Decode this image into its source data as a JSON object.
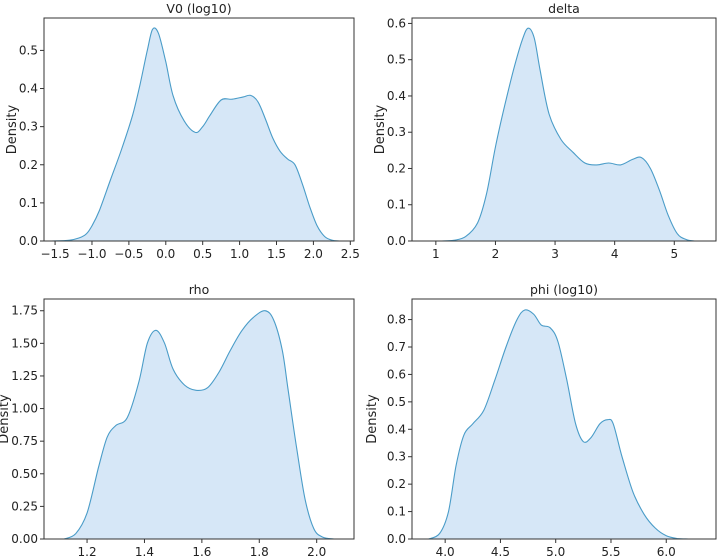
{
  "colors": {
    "fill": "#cfe3f6",
    "line": "#4a9cc8",
    "axis": "#333333"
  },
  "chart_data": [
    {
      "type": "area",
      "title": "V0 (log10)",
      "xlabel": "",
      "ylabel": "Density",
      "xlim": [
        -1.65,
        2.55
      ],
      "ylim": [
        0,
        0.585
      ],
      "xticks": [
        -1.5,
        -1.0,
        -0.5,
        0.0,
        0.5,
        1.0,
        1.5,
        2.0,
        2.5
      ],
      "xtick_labels": [
        "−1.5",
        "−1.0",
        "−0.5",
        "0.0",
        "0.5",
        "1.0",
        "1.5",
        "2.0",
        "2.5"
      ],
      "yticks": [
        0.0,
        0.1,
        0.2,
        0.3,
        0.4,
        0.5
      ],
      "ytick_labels": [
        "0.0",
        "0.1",
        "0.2",
        "0.3",
        "0.4",
        "0.5"
      ],
      "x": [
        -1.55,
        -1.3,
        -1.1,
        -1.0,
        -0.9,
        -0.75,
        -0.6,
        -0.45,
        -0.35,
        -0.25,
        -0.18,
        -0.1,
        0.0,
        0.1,
        0.25,
        0.4,
        0.5,
        0.6,
        0.75,
        0.9,
        1.05,
        1.15,
        1.25,
        1.35,
        1.45,
        1.55,
        1.65,
        1.75,
        1.85,
        1.95,
        2.05,
        2.15,
        2.25,
        2.35
      ],
      "y": [
        0.0,
        0.002,
        0.015,
        0.04,
        0.08,
        0.16,
        0.24,
        0.33,
        0.41,
        0.5,
        0.555,
        0.545,
        0.47,
        0.38,
        0.315,
        0.285,
        0.3,
        0.33,
        0.37,
        0.372,
        0.378,
        0.382,
        0.365,
        0.32,
        0.27,
        0.235,
        0.215,
        0.2,
        0.15,
        0.09,
        0.04,
        0.012,
        0.002,
        0.0
      ]
    },
    {
      "type": "area",
      "title": "delta",
      "xlabel": "",
      "ylabel": "Density",
      "xlim": [
        0.6,
        5.7
      ],
      "ylim": [
        0,
        0.615
      ],
      "xticks": [
        1,
        2,
        3,
        4,
        5
      ],
      "xtick_labels": [
        "1",
        "2",
        "3",
        "4",
        "5"
      ],
      "yticks": [
        0.0,
        0.1,
        0.2,
        0.3,
        0.4,
        0.5,
        0.6
      ],
      "ytick_labels": [
        "0.0",
        "0.1",
        "0.2",
        "0.3",
        "0.4",
        "0.5",
        "0.6"
      ],
      "x": [
        1.1,
        1.3,
        1.5,
        1.7,
        1.85,
        2.0,
        2.15,
        2.3,
        2.45,
        2.55,
        2.65,
        2.75,
        2.9,
        3.1,
        3.3,
        3.5,
        3.7,
        3.9,
        4.1,
        4.3,
        4.45,
        4.6,
        4.75,
        4.9,
        5.05,
        5.2,
        5.35
      ],
      "y": [
        0.0,
        0.002,
        0.012,
        0.05,
        0.13,
        0.26,
        0.37,
        0.47,
        0.555,
        0.587,
        0.56,
        0.47,
        0.35,
        0.28,
        0.245,
        0.215,
        0.21,
        0.215,
        0.21,
        0.225,
        0.23,
        0.2,
        0.14,
        0.07,
        0.02,
        0.004,
        0.0
      ]
    },
    {
      "type": "area",
      "title": "rho",
      "xlabel": "",
      "ylabel": "Density",
      "xlim": [
        1.05,
        2.13
      ],
      "ylim": [
        0,
        1.84
      ],
      "xticks": [
        1.2,
        1.4,
        1.6,
        1.8,
        2.0
      ],
      "xtick_labels": [
        "1.2",
        "1.4",
        "1.6",
        "1.8",
        "2.0"
      ],
      "yticks": [
        0.0,
        0.25,
        0.5,
        0.75,
        1.0,
        1.25,
        1.5,
        1.75
      ],
      "ytick_labels": [
        "0.00",
        "0.25",
        "0.50",
        "0.75",
        "1.00",
        "1.25",
        "1.50",
        "1.75"
      ],
      "x": [
        1.12,
        1.16,
        1.2,
        1.24,
        1.27,
        1.3,
        1.34,
        1.38,
        1.41,
        1.44,
        1.47,
        1.5,
        1.54,
        1.58,
        1.62,
        1.66,
        1.7,
        1.74,
        1.78,
        1.82,
        1.85,
        1.88,
        1.9,
        1.93,
        1.96,
        1.99,
        2.02,
        2.06
      ],
      "y": [
        0.0,
        0.04,
        0.2,
        0.55,
        0.78,
        0.87,
        0.93,
        1.2,
        1.5,
        1.6,
        1.5,
        1.3,
        1.18,
        1.14,
        1.16,
        1.28,
        1.45,
        1.6,
        1.7,
        1.75,
        1.68,
        1.45,
        1.15,
        0.7,
        0.3,
        0.08,
        0.015,
        0.0
      ]
    },
    {
      "type": "area",
      "title": "phi (log10)",
      "xlabel": "",
      "ylabel": "Density",
      "xlim": [
        3.7,
        6.45
      ],
      "ylim": [
        0,
        0.875
      ],
      "xticks": [
        4.0,
        4.5,
        5.0,
        5.5,
        6.0
      ],
      "xtick_labels": [
        "4.0",
        "4.5",
        "5.0",
        "5.5",
        "6.0"
      ],
      "yticks": [
        0.0,
        0.1,
        0.2,
        0.3,
        0.4,
        0.5,
        0.6,
        0.7,
        0.8
      ],
      "ytick_labels": [
        "0.0",
        "0.1",
        "0.2",
        "0.3",
        "0.4",
        "0.5",
        "0.6",
        "0.7",
        "0.8"
      ],
      "x": [
        3.85,
        3.95,
        4.03,
        4.1,
        4.17,
        4.25,
        4.35,
        4.45,
        4.55,
        4.65,
        4.72,
        4.8,
        4.87,
        4.95,
        5.02,
        5.1,
        5.18,
        5.25,
        5.32,
        5.4,
        5.47,
        5.52,
        5.6,
        5.7,
        5.8,
        5.9,
        6.0,
        6.1,
        6.2
      ],
      "y": [
        0.0,
        0.02,
        0.1,
        0.27,
        0.38,
        0.42,
        0.47,
        0.58,
        0.7,
        0.8,
        0.835,
        0.82,
        0.78,
        0.77,
        0.72,
        0.58,
        0.42,
        0.355,
        0.37,
        0.42,
        0.435,
        0.42,
        0.3,
        0.17,
        0.09,
        0.04,
        0.012,
        0.002,
        0.0
      ]
    }
  ]
}
